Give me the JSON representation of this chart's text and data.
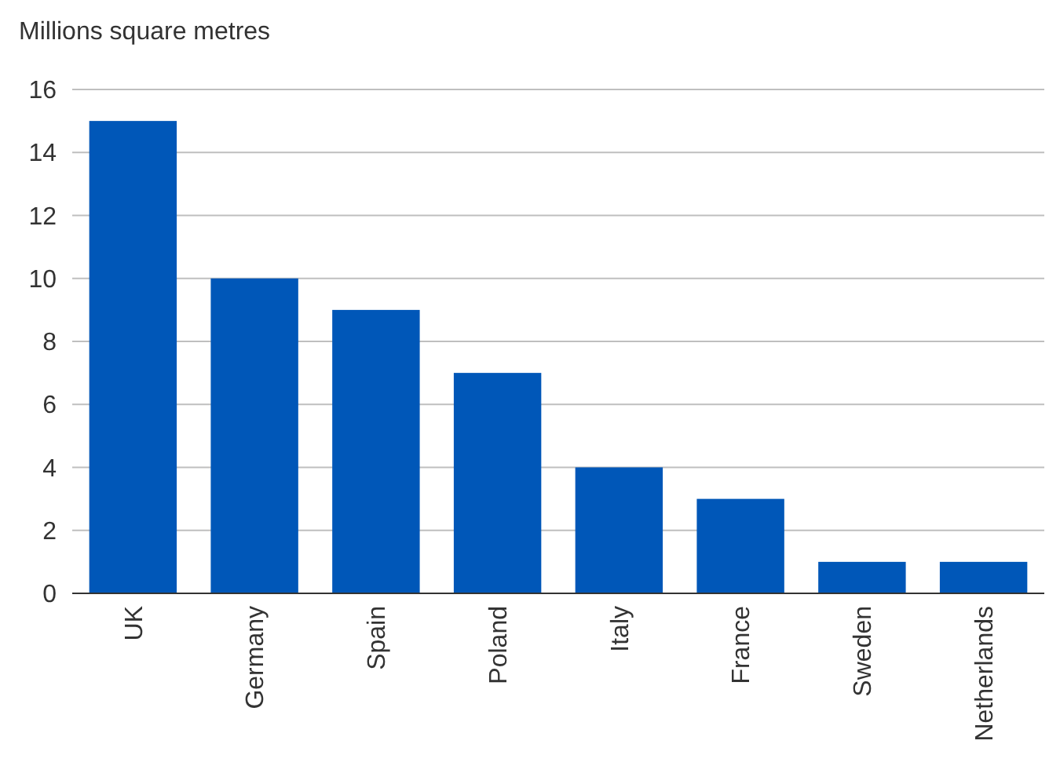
{
  "chart_data": {
    "type": "bar",
    "ylabel": "Millions square metres",
    "categories": [
      "UK",
      "Germany",
      "Spain",
      "Poland",
      "Italy",
      "France",
      "Sweden",
      "Netherlands"
    ],
    "values": [
      15,
      10,
      9,
      7,
      4,
      3,
      1,
      1
    ],
    "color": "#0057b8",
    "ylim": [
      0,
      16
    ],
    "yticks": [
      0,
      2,
      4,
      6,
      8,
      10,
      12,
      14,
      16
    ],
    "grid": "y"
  }
}
